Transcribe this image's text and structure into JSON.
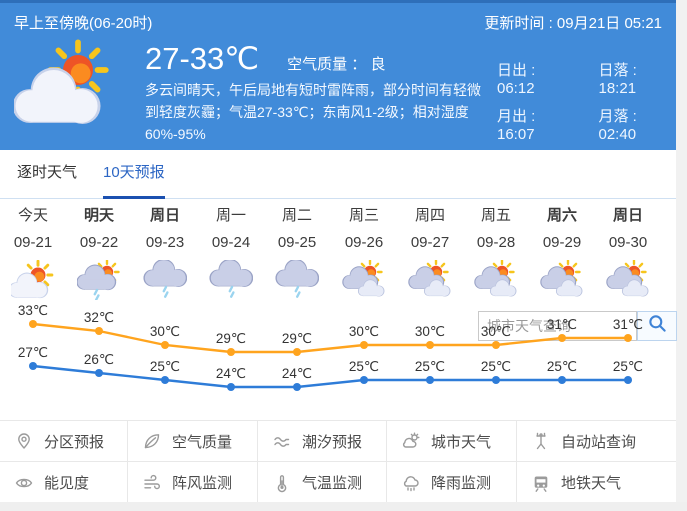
{
  "colors": {
    "header_bg": "#418bd9",
    "header_top_border": "#2e6fb9",
    "active_tab": "#2c66c4",
    "active_tab_underline": "#1b50b0",
    "high_line": "#FFA41E",
    "low_line": "#2E7CD8"
  },
  "header": {
    "period": "早上至傍晚(06-20时)",
    "update": "更新时间 : 09月21日 05:21",
    "icon": "sun-cloud",
    "temp_range": "27-33℃",
    "air_quality": "空气质量 ：  良",
    "description": "多云间晴天，午后局地有短时雷阵雨，部分时间有轻微到轻度灰霾；气温27-33℃；东南风1-2级；相对湿度60%-95%",
    "sun_moon": [
      {
        "text": "日出 : 06:12"
      },
      {
        "text": "日落 : 18:21"
      },
      {
        "text": "月出 : 16:07"
      },
      {
        "text": "月落 : 02:40"
      }
    ]
  },
  "tabs": [
    {
      "label": "逐时天气",
      "active": false
    },
    {
      "label": "10天预报",
      "active": true
    }
  ],
  "search": {
    "placeholder": "城市天气查询",
    "icon": "search-icon"
  },
  "forecast": {
    "days": [
      {
        "name": "今天",
        "date": "09-21",
        "icon": "sun-cloud",
        "bold": false
      },
      {
        "name": "明天",
        "date": "09-22",
        "icon": "cloud-sun-rain",
        "bold": true
      },
      {
        "name": "周日",
        "date": "09-23",
        "icon": "cloud-rain",
        "bold": true
      },
      {
        "name": "周一",
        "date": "09-24",
        "icon": "cloud-rain",
        "bold": false
      },
      {
        "name": "周二",
        "date": "09-25",
        "icon": "cloud-rain",
        "bold": false
      },
      {
        "name": "周三",
        "date": "09-26",
        "icon": "sun-clouds",
        "bold": false
      },
      {
        "name": "周四",
        "date": "09-27",
        "icon": "sun-clouds",
        "bold": false
      },
      {
        "name": "周五",
        "date": "09-28",
        "icon": "sun-clouds",
        "bold": false
      },
      {
        "name": "周六",
        "date": "09-29",
        "icon": "sun-clouds",
        "bold": true
      },
      {
        "name": "周日",
        "date": "09-30",
        "icon": "sun-clouds",
        "bold": true
      }
    ]
  },
  "chart_data": {
    "type": "line",
    "categories": [
      "09-21",
      "09-22",
      "09-23",
      "09-24",
      "09-25",
      "09-26",
      "09-27",
      "09-28",
      "09-29",
      "09-30"
    ],
    "series": [
      {
        "name": "high",
        "unit": "℃",
        "color": "#FFA41E",
        "values": [
          33,
          32,
          30,
          29,
          29,
          30,
          30,
          30,
          31,
          31
        ]
      },
      {
        "name": "low",
        "unit": "℃",
        "color": "#2E7CD8",
        "values": [
          27,
          26,
          25,
          24,
          24,
          25,
          25,
          25,
          25,
          25
        ]
      }
    ],
    "point_labels": true,
    "legend": "none",
    "grid": false
  },
  "quick_links": [
    [
      {
        "label": "分区预报",
        "icon": "map-pin-icon"
      },
      {
        "label": "空气质量",
        "icon": "leaf-icon"
      },
      {
        "label": "潮汐预报",
        "icon": "wave-icon"
      },
      {
        "label": "城市天气",
        "icon": "city-sun-icon"
      },
      {
        "label": "自动站查询",
        "icon": "station-icon"
      }
    ],
    [
      {
        "label": "能见度",
        "icon": "eye-icon"
      },
      {
        "label": "阵风监测",
        "icon": "wind-icon"
      },
      {
        "label": "气温监测",
        "icon": "thermometer-icon"
      },
      {
        "label": "降雨监测",
        "icon": "rain-cloud-icon"
      },
      {
        "label": "地铁天气",
        "icon": "train-icon"
      }
    ]
  ]
}
